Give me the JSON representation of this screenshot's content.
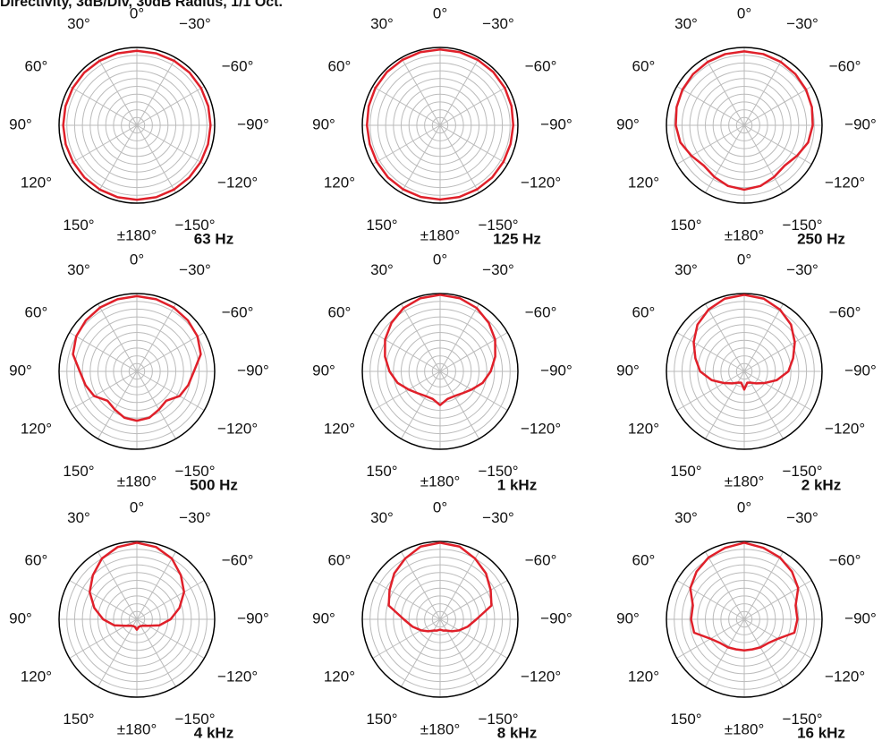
{
  "title": "Directivity, 3dB/Div, 30dB Radius, 1/1 Oct.",
  "chart_data": [
    {
      "type": "polar",
      "title": "63 Hz",
      "color": "#e0202a",
      "rlim": [
        -30,
        0
      ],
      "rticks": [
        -27,
        -24,
        -21,
        -18,
        -15,
        -12,
        -9,
        -6,
        -3
      ],
      "theta": [
        0,
        15,
        30,
        45,
        60,
        75,
        90,
        105,
        120,
        135,
        150,
        165,
        180,
        195,
        210,
        225,
        240,
        255,
        270,
        285,
        300,
        315,
        330,
        345
      ],
      "values": [
        -1.3,
        -1.3,
        -1.3,
        -1.3,
        -1.4,
        -1.5,
        -1.6,
        -1.6,
        -1.6,
        -1.5,
        -1.4,
        -1.3,
        -1.3,
        -1.3,
        -1.4,
        -1.5,
        -1.6,
        -1.6,
        -1.6,
        -1.5,
        -1.4,
        -1.3,
        -1.3,
        -1.3
      ],
      "thetaticks": [
        {
          "value": 0,
          "label": "0°"
        },
        {
          "value": 30,
          "label": "30°"
        },
        {
          "value": 60,
          "label": "60°"
        },
        {
          "value": 90,
          "label": "90°"
        },
        {
          "value": 120,
          "label": "120°"
        },
        {
          "value": 150,
          "label": "150°"
        },
        {
          "value": 180,
          "label": "±180°"
        },
        {
          "value": -150,
          "label": "−150°"
        },
        {
          "value": -120,
          "label": "−120°"
        },
        {
          "value": -90,
          "label": "−90°"
        },
        {
          "value": -60,
          "label": "−60°"
        },
        {
          "value": -30,
          "label": "−30°"
        }
      ]
    },
    {
      "type": "polar",
      "title": "125 Hz",
      "color": "#e0202a",
      "rlim": [
        -30,
        0
      ],
      "rticks": [
        -27,
        -24,
        -21,
        -18,
        -15,
        -12,
        -9,
        -6,
        -3
      ],
      "theta": [
        0,
        15,
        30,
        45,
        60,
        75,
        90,
        105,
        120,
        135,
        150,
        165,
        180,
        195,
        210,
        225,
        240,
        255,
        270,
        285,
        300,
        315,
        330,
        345
      ],
      "values": [
        -0.8,
        -0.8,
        -0.9,
        -1.0,
        -1.2,
        -1.5,
        -1.8,
        -1.9,
        -1.8,
        -1.6,
        -1.5,
        -1.4,
        -1.4,
        -1.4,
        -1.5,
        -1.6,
        -1.8,
        -1.9,
        -1.8,
        -1.5,
        -1.2,
        -1.0,
        -0.9,
        -0.8
      ],
      "thetaticks": [
        {
          "value": 0,
          "label": "0°"
        },
        {
          "value": 30,
          "label": "30°"
        },
        {
          "value": 60,
          "label": "60°"
        },
        {
          "value": 90,
          "label": "90°"
        },
        {
          "value": 120,
          "label": "120°"
        },
        {
          "value": 150,
          "label": "150°"
        },
        {
          "value": 180,
          "label": "±180°"
        },
        {
          "value": -150,
          "label": "−150°"
        },
        {
          "value": -120,
          "label": "−120°"
        },
        {
          "value": -90,
          "label": "−90°"
        },
        {
          "value": -60,
          "label": "−60°"
        },
        {
          "value": -30,
          "label": "−30°"
        }
      ]
    },
    {
      "type": "polar",
      "title": "250 Hz",
      "color": "#e0202a",
      "rlim": [
        -30,
        0
      ],
      "rticks": [
        -27,
        -24,
        -21,
        -18,
        -15,
        -12,
        -9,
        -6,
        -3
      ],
      "theta": [
        0,
        15,
        30,
        45,
        60,
        75,
        90,
        105,
        120,
        135,
        150,
        165,
        180,
        195,
        210,
        225,
        240,
        255,
        270,
        285,
        300,
        315,
        330,
        345
      ],
      "values": [
        -1.5,
        -1.6,
        -1.8,
        -2.1,
        -2.5,
        -3.0,
        -3.6,
        -4.5,
        -6.5,
        -8.0,
        -7.0,
        -5.8,
        -5.2,
        -5.8,
        -7.0,
        -8.0,
        -6.5,
        -4.5,
        -3.6,
        -3.0,
        -2.5,
        -2.1,
        -1.8,
        -1.6
      ],
      "thetaticks": [
        {
          "value": 0,
          "label": "0°"
        },
        {
          "value": 30,
          "label": "30°"
        },
        {
          "value": 60,
          "label": "60°"
        },
        {
          "value": 90,
          "label": "90°"
        },
        {
          "value": 120,
          "label": "120°"
        },
        {
          "value": 150,
          "label": "150°"
        },
        {
          "value": 180,
          "label": "±180°"
        },
        {
          "value": -150,
          "label": "−150°"
        },
        {
          "value": -120,
          "label": "−120°"
        },
        {
          "value": -90,
          "label": "−90°"
        },
        {
          "value": -60,
          "label": "−60°"
        },
        {
          "value": -30,
          "label": "−30°"
        }
      ]
    },
    {
      "type": "polar",
      "title": "500 Hz",
      "color": "#e0202a",
      "rlim": [
        -30,
        0
      ],
      "rticks": [
        -27,
        -24,
        -21,
        -18,
        -15,
        -12,
        -9,
        -6,
        -3
      ],
      "theta": [
        0,
        15,
        30,
        45,
        60,
        75,
        90,
        105,
        120,
        135,
        150,
        165,
        180,
        195,
        210,
        225,
        240,
        255,
        270,
        285,
        300,
        315,
        330,
        345
      ],
      "values": [
        -1,
        -1.2,
        -1.6,
        -2.2,
        -3,
        -4.5,
        -8,
        -9.5,
        -11,
        -14,
        -13,
        -11.5,
        -11,
        -11.5,
        -13,
        -14,
        -11,
        -9.5,
        -8,
        -4.5,
        -3,
        -2.2,
        -1.6,
        -1.2
      ],
      "thetaticks": [
        {
          "value": 0,
          "label": "0°"
        },
        {
          "value": 30,
          "label": "30°"
        },
        {
          "value": 60,
          "label": "60°"
        },
        {
          "value": 90,
          "label": "90°"
        },
        {
          "value": 120,
          "label": "120°"
        },
        {
          "value": 150,
          "label": "150°"
        },
        {
          "value": 180,
          "label": "±180°"
        },
        {
          "value": -150,
          "label": "−150°"
        },
        {
          "value": -120,
          "label": "−120°"
        },
        {
          "value": -90,
          "label": "−90°"
        },
        {
          "value": -60,
          "label": "−60°"
        },
        {
          "value": -30,
          "label": "−30°"
        }
      ]
    },
    {
      "type": "polar",
      "title": "1 kHz",
      "color": "#e0202a",
      "rlim": [
        -30,
        0
      ],
      "rticks": [
        -27,
        -24,
        -21,
        -18,
        -15,
        -12,
        -9,
        -6,
        -3
      ],
      "theta": [
        0,
        15,
        30,
        45,
        60,
        75,
        90,
        105,
        120,
        135,
        150,
        165,
        180,
        195,
        210,
        225,
        240,
        255,
        270,
        285,
        300,
        315,
        330,
        345
      ],
      "values": [
        -0.5,
        -0.8,
        -1.8,
        -3.5,
        -5.5,
        -8,
        -10.5,
        -13,
        -16,
        -18,
        -19,
        -19,
        -17,
        -19,
        -19,
        -18,
        -16,
        -13,
        -10.5,
        -8,
        -5.5,
        -3.5,
        -1.8,
        -0.8
      ],
      "thetaticks": [
        {
          "value": 0,
          "label": "0°"
        },
        {
          "value": 30,
          "label": "30°"
        },
        {
          "value": 60,
          "label": "60°"
        },
        {
          "value": 90,
          "label": "90°"
        },
        {
          "value": 120,
          "label": "120°"
        },
        {
          "value": 150,
          "label": "150°"
        },
        {
          "value": 180,
          "label": "±180°"
        },
        {
          "value": -150,
          "label": "−150°"
        },
        {
          "value": -120,
          "label": "−120°"
        },
        {
          "value": -90,
          "label": "−90°"
        },
        {
          "value": -60,
          "label": "−60°"
        },
        {
          "value": -30,
          "label": "−30°"
        }
      ]
    },
    {
      "type": "polar",
      "title": "2 kHz",
      "color": "#e0202a",
      "rlim": [
        -30,
        0
      ],
      "rticks": [
        -27,
        -24,
        -21,
        -18,
        -15,
        -12,
        -9,
        -6,
        -3
      ],
      "theta": [
        0,
        15,
        30,
        45,
        60,
        75,
        90,
        105,
        120,
        135,
        150,
        165,
        180,
        195,
        210,
        225,
        240,
        255,
        270,
        285,
        300,
        315,
        330,
        345
      ],
      "values": [
        -0.5,
        -1,
        -2.5,
        -4.5,
        -7.5,
        -10.5,
        -13,
        -17,
        -21,
        -23.5,
        -25,
        -25.5,
        -23,
        -25.5,
        -25,
        -23.5,
        -21,
        -17,
        -13,
        -10.5,
        -7.5,
        -4.5,
        -2.5,
        -1
      ],
      "thetaticks": [
        {
          "value": 0,
          "label": "0°"
        },
        {
          "value": 30,
          "label": "30°"
        },
        {
          "value": 60,
          "label": "60°"
        },
        {
          "value": 90,
          "label": "90°"
        },
        {
          "value": 120,
          "label": "120°"
        },
        {
          "value": 150,
          "label": "150°"
        },
        {
          "value": 180,
          "label": "±180°"
        },
        {
          "value": -150,
          "label": "−150°"
        },
        {
          "value": -120,
          "label": "−120°"
        },
        {
          "value": -90,
          "label": "−90°"
        },
        {
          "value": -60,
          "label": "−60°"
        },
        {
          "value": -30,
          "label": "−30°"
        }
      ]
    },
    {
      "type": "polar",
      "title": "4 kHz",
      "color": "#e0202a",
      "rlim": [
        -30,
        0
      ],
      "rticks": [
        -27,
        -24,
        -21,
        -18,
        -15,
        -12,
        -9,
        -6,
        -3
      ],
      "theta": [
        0,
        15,
        30,
        45,
        60,
        75,
        90,
        105,
        120,
        135,
        150,
        165,
        180,
        195,
        210,
        225,
        240,
        255,
        270,
        285,
        300,
        315,
        330,
        345
      ],
      "values": [
        -0.5,
        -1.2,
        -3,
        -6,
        -9,
        -13,
        -17,
        -21,
        -25,
        -26.5,
        -27,
        -27,
        -26,
        -27,
        -27,
        -26.5,
        -25,
        -21,
        -17,
        -13,
        -9,
        -6,
        -3,
        -1.2
      ],
      "thetaticks": [
        {
          "value": 0,
          "label": "0°"
        },
        {
          "value": 30,
          "label": "30°"
        },
        {
          "value": 60,
          "label": "60°"
        },
        {
          "value": 90,
          "label": "90°"
        },
        {
          "value": 120,
          "label": "120°"
        },
        {
          "value": 150,
          "label": "150°"
        },
        {
          "value": 180,
          "label": "±180°"
        },
        {
          "value": -150,
          "label": "−150°"
        },
        {
          "value": -120,
          "label": "−120°"
        },
        {
          "value": -90,
          "label": "−90°"
        },
        {
          "value": -60,
          "label": "−60°"
        },
        {
          "value": -30,
          "label": "−30°"
        }
      ]
    },
    {
      "type": "polar",
      "title": "8 kHz",
      "color": "#e0202a",
      "rlim": [
        -30,
        0
      ],
      "rticks": [
        -27,
        -24,
        -21,
        -18,
        -15,
        -12,
        -9,
        -6,
        -3
      ],
      "theta": [
        0,
        15,
        30,
        45,
        60,
        75,
        90,
        105,
        120,
        135,
        150,
        165,
        180,
        195,
        210,
        225,
        240,
        255,
        270,
        285,
        300,
        315,
        330,
        345
      ],
      "values": [
        -0.5,
        -1,
        -3,
        -5,
        -7.5,
        -9.5,
        -16,
        -19,
        -21.5,
        -23.5,
        -25,
        -25.5,
        -26,
        -25.5,
        -25,
        -23.5,
        -21.5,
        -19,
        -16,
        -9.5,
        -7.5,
        -5,
        -3,
        -1
      ],
      "thetaticks": [
        {
          "value": 0,
          "label": "0°"
        },
        {
          "value": 30,
          "label": "30°"
        },
        {
          "value": 60,
          "label": "60°"
        },
        {
          "value": 90,
          "label": "90°"
        },
        {
          "value": 120,
          "label": "120°"
        },
        {
          "value": 150,
          "label": "150°"
        },
        {
          "value": 180,
          "label": "±180°"
        },
        {
          "value": -150,
          "label": "−150°"
        },
        {
          "value": -120,
          "label": "−120°"
        },
        {
          "value": -90,
          "label": "−90°"
        },
        {
          "value": -60,
          "label": "−60°"
        },
        {
          "value": -30,
          "label": "−30°"
        }
      ]
    },
    {
      "type": "polar",
      "title": "16 kHz",
      "color": "#e0202a",
      "rlim": [
        -30,
        0
      ],
      "rticks": [
        -27,
        -24,
        -21,
        -18,
        -15,
        -12,
        -9,
        -6,
        -3
      ],
      "theta": [
        0,
        15,
        30,
        45,
        60,
        75,
        90,
        105,
        120,
        135,
        150,
        165,
        180,
        195,
        210,
        225,
        240,
        255,
        270,
        285,
        300,
        315,
        330,
        345
      ],
      "values": [
        -0.5,
        -1.5,
        -2.5,
        -4,
        -6,
        -9.5,
        -9.5,
        -10,
        -15,
        -17,
        -17.5,
        -18,
        -18,
        -18,
        -17.5,
        -17,
        -15,
        -10,
        -9.5,
        -9.5,
        -6,
        -4,
        -2.5,
        -1.5
      ],
      "thetaticks": [
        {
          "value": 0,
          "label": "0°"
        },
        {
          "value": 30,
          "label": "30°"
        },
        {
          "value": 60,
          "label": "60°"
        },
        {
          "value": 90,
          "label": "90°"
        },
        {
          "value": 120,
          "label": "120°"
        },
        {
          "value": 150,
          "label": "150°"
        },
        {
          "value": 180,
          "label": "±180°"
        },
        {
          "value": -150,
          "label": "−150°"
        },
        {
          "value": -120,
          "label": "−120°"
        },
        {
          "value": -90,
          "label": "−90°"
        },
        {
          "value": -60,
          "label": "−60°"
        },
        {
          "value": -30,
          "label": "−30°"
        }
      ]
    }
  ]
}
